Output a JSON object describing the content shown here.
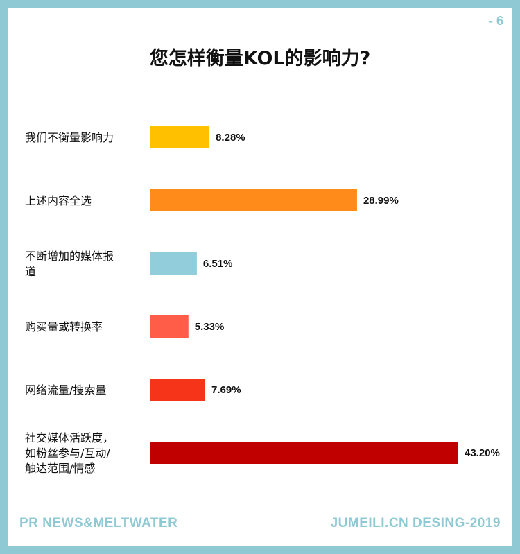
{
  "page_number": "- 6",
  "footer": {
    "left": "PR NEWS&MELTWATER",
    "right": "JUMEILI.CN DESING-2019"
  },
  "chart_data": {
    "type": "bar",
    "orientation": "horizontal",
    "title": "您怎样衡量KOL的影响力?",
    "categories": [
      [
        "我们不衡量影响力"
      ],
      [
        "上述内容全选"
      ],
      [
        "不断增加的媒体报",
        "道"
      ],
      [
        "购买量或转换率"
      ],
      [
        "网络流量/搜索量"
      ],
      [
        "社交媒体活跃度，",
        "如粉丝参与/互动/",
        "触达范围/情感"
      ]
    ],
    "values": [
      8.28,
      28.99,
      6.51,
      5.33,
      7.69,
      43.2
    ],
    "value_labels": [
      "8.28%",
      "28.99%",
      "6.51%",
      "5.33%",
      "7.69%",
      "43.20%"
    ],
    "colors": [
      "#ffc000",
      "#ff8c1a",
      "#92cddc",
      "#ff5d47",
      "#f5341a",
      "#c00000"
    ],
    "xlim": [
      0,
      43.2
    ],
    "grid": false,
    "legend": "none"
  }
}
